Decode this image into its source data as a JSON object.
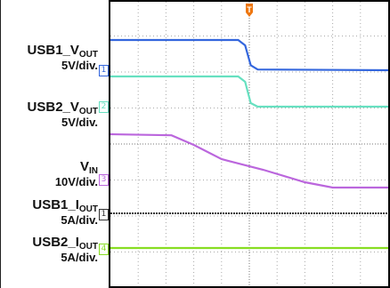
{
  "chart_data": {
    "type": "line",
    "title": "",
    "xlabel": "",
    "ylabel": "",
    "grid": true,
    "grid_divisions": {
      "x": 10,
      "y": 8
    },
    "trigger_marker": "T",
    "x": [
      0,
      1,
      2,
      3,
      4,
      5,
      6,
      7,
      8,
      9,
      10
    ],
    "series": [
      {
        "key": "usb1_vout",
        "name_main": "USB1_V",
        "name_sub": "OUT",
        "scale": "5V/div.",
        "channel": "1",
        "color": "#3366dd",
        "points": [
          [
            0,
            0.85
          ],
          [
            4.6,
            0.85
          ],
          [
            4.85,
            0.7
          ],
          [
            5.05,
            0.14
          ],
          [
            5.3,
            0.02
          ],
          [
            10,
            0.0
          ]
        ]
      },
      {
        "key": "usb2_vout",
        "name_main": "USB2_V",
        "name_sub": "OUT",
        "scale": "5V/div.",
        "channel": "2",
        "color": "#66e0c0",
        "points": [
          [
            0,
            0.85
          ],
          [
            4.6,
            0.85
          ],
          [
            4.85,
            0.7
          ],
          [
            5.05,
            0.1
          ],
          [
            5.3,
            0.0
          ],
          [
            10,
            0.0
          ]
        ]
      },
      {
        "key": "vin",
        "name_main": "V",
        "name_sub": "IN",
        "scale": "10V/div.",
        "channel": "3",
        "color": "#bb66dd",
        "points": [
          [
            0,
            0.0
          ],
          [
            2.2,
            -0.03
          ],
          [
            3.0,
            -0.3
          ],
          [
            4.0,
            -0.7
          ],
          [
            5.5,
            -1.0
          ],
          [
            7.0,
            -1.35
          ],
          [
            8.0,
            -1.5
          ],
          [
            10,
            -1.5
          ]
        ]
      },
      {
        "key": "usb1_iout",
        "name_main": "USB1_I",
        "name_sub": "OUT",
        "scale": "5A/div.",
        "channel": "1",
        "color": "#333333",
        "points": [
          [
            0,
            0.0
          ],
          [
            10,
            0.0
          ]
        ]
      },
      {
        "key": "usb2_iout",
        "name_main": "USB2_I",
        "name_sub": "OUT",
        "scale": "5A/div.",
        "channel": "4",
        "color": "#88dd22",
        "points": [
          [
            0,
            0.0
          ],
          [
            10,
            0.0
          ]
        ]
      }
    ]
  }
}
